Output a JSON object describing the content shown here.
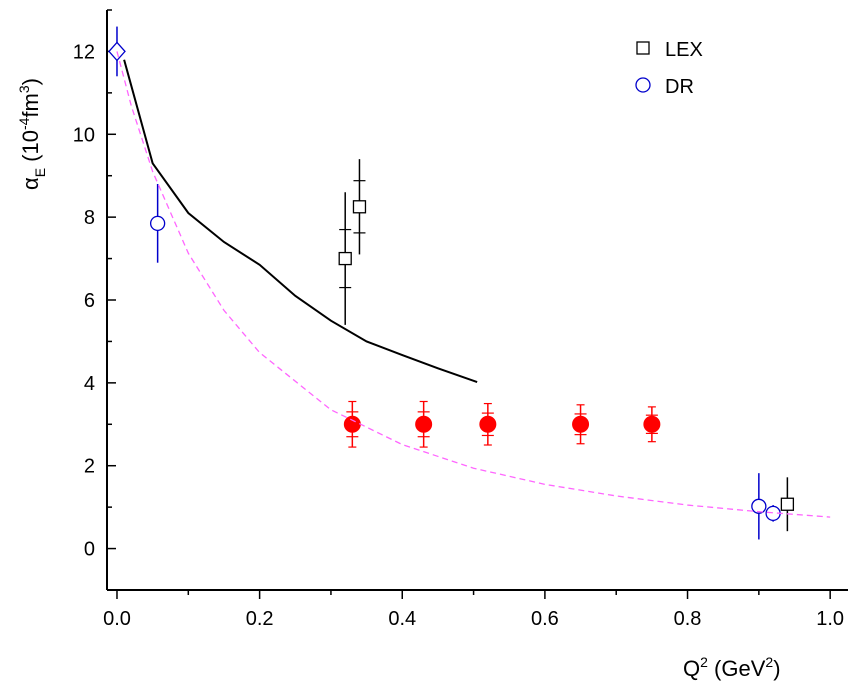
{
  "chart_data": {
    "type": "scatter",
    "xlabel": [
      "Q",
      "2",
      " (GeV",
      "2",
      ")"
    ],
    "ylabel": [
      "α",
      "E",
      " (10",
      "-4",
      "fm",
      "3",
      ")"
    ],
    "xlim": [
      -0.014,
      1.025
    ],
    "ylim": [
      -1,
      13
    ],
    "xticks": [
      {
        "value": 0,
        "label": "0.0"
      },
      {
        "value": 0.2,
        "label": "0.2"
      },
      {
        "value": 0.4,
        "label": "0.4"
      },
      {
        "value": 0.6,
        "label": "0.6"
      },
      {
        "value": 0.8,
        "label": "0.8"
      },
      {
        "value": 1,
        "label": "1.0"
      }
    ],
    "xticks_minor": [
      0.1,
      0.3,
      0.5,
      0.7,
      0.9
    ],
    "yticks": [
      0,
      2,
      4,
      6,
      8,
      10,
      12
    ],
    "yticks_minor": [
      -1,
      1,
      3,
      5,
      7,
      9,
      11,
      13
    ],
    "legend": "upper right",
    "series": [
      {
        "name": "LEX",
        "marker": "square",
        "color": "#000000",
        "x": [
          0.32,
          0.34,
          0.94
        ],
        "values": [
          7.0,
          8.25,
          1.07
        ],
        "yerr": [
          1.6,
          1.15,
          0.65
        ],
        "yerr_inner": [
          0.7,
          0.63,
          null
        ]
      },
      {
        "name": "DR",
        "marker": "circle",
        "color": "#0000cc",
        "x": [
          0.057,
          0.9,
          0.92
        ],
        "values": [
          7.85,
          1.02,
          0.85
        ],
        "yerr": [
          0.95,
          0.8,
          0.2
        ]
      },
      {
        "marker": "diamond",
        "color": "#0000cc",
        "x": [
          0
        ],
        "values": [
          12
        ],
        "yerr": [
          0.6
        ]
      },
      {
        "marker": "filled-circle",
        "color": "#ff0000",
        "x": [
          0.33,
          0.43,
          0.52,
          0.65,
          0.75
        ],
        "values": [
          3,
          3,
          3,
          3,
          3
        ],
        "yerr": [
          0.55,
          0.55,
          0.5,
          0.47,
          0.42
        ],
        "yerr_inner": [
          0.3,
          0.3,
          0.27,
          0.25,
          0.22
        ]
      },
      {
        "marker": "line",
        "color": "#000000",
        "x": [
          0.01,
          0.05,
          0.1,
          0.15,
          0.2,
          0.25,
          0.3,
          0.35,
          0.4,
          0.45,
          0.505
        ],
        "values": [
          11.8,
          9.3,
          8.1,
          7.4,
          6.85,
          6.1,
          5.5,
          5.0,
          4.67,
          4.35,
          4.02
        ]
      },
      {
        "marker": "dashed-line",
        "color": "#ff66ff",
        "x": [
          0,
          0.02,
          0.05,
          0.1,
          0.15,
          0.2,
          0.3,
          0.4,
          0.5,
          0.6,
          0.7,
          0.8,
          0.9,
          1.0
        ],
        "values": [
          12,
          10.69,
          9.1,
          7.13,
          5.75,
          4.73,
          3.35,
          2.51,
          1.94,
          1.55,
          1.27,
          1.05,
          0.89,
          0.76
        ]
      }
    ]
  }
}
